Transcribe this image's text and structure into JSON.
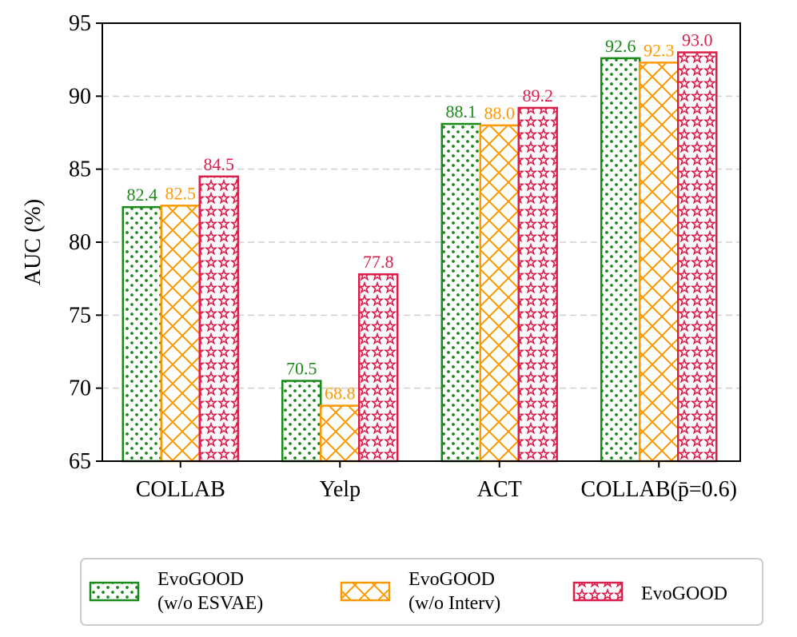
{
  "chart_data": {
    "type": "bar",
    "categories": [
      "COLLAB",
      "Yelp",
      "ACT",
      "COLLAB(p̄=0.6)"
    ],
    "series": [
      {
        "name": "EvoGOOD\n(w/o ESVAE)",
        "values": [
          82.4,
          70.5,
          88.1,
          92.6
        ],
        "color": "#1a8a1a",
        "pattern": "dots"
      },
      {
        "name": "EvoGOOD\n(w/o Interv)",
        "values": [
          82.5,
          68.8,
          88.0,
          92.3
        ],
        "color": "#ff9900",
        "pattern": "crosshatch"
      },
      {
        "name": "EvoGOOD",
        "values": [
          84.5,
          77.8,
          89.2,
          93.0
        ],
        "color": "#dc1e4b",
        "pattern": "stars"
      }
    ],
    "value_labels": [
      [
        "82.4",
        "70.5",
        "88.1",
        "92.6"
      ],
      [
        "82.5",
        "68.8",
        "88.0",
        "92.3"
      ],
      [
        "84.5",
        "77.8",
        "89.2",
        "93.0"
      ]
    ],
    "ylabel": "AUC (%)",
    "xlabel": "",
    "ylim": [
      65,
      95
    ],
    "yticks": [
      65,
      70,
      75,
      80,
      85,
      90,
      95
    ],
    "ytick_labels": [
      "65",
      "70",
      "75",
      "80",
      "85",
      "90",
      "95"
    ],
    "grid": "horizontal dashed",
    "legend_position": "bottom-center"
  }
}
